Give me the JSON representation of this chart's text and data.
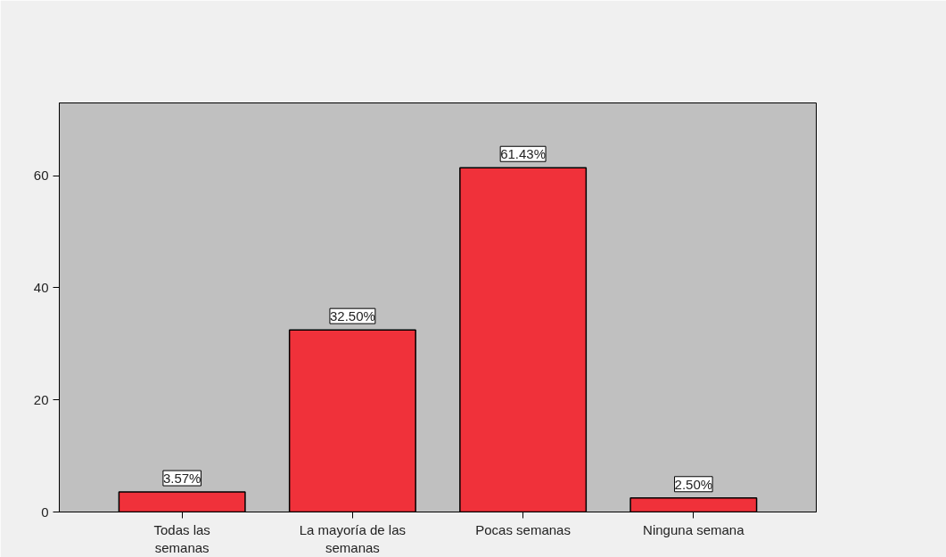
{
  "chart_data": {
    "type": "bar",
    "categories": [
      "Todas las semanas",
      "La mayoría de las semanas",
      "Pocas semanas",
      "Ninguna semana"
    ],
    "values": [
      3.57,
      32.5,
      61.43,
      2.5
    ],
    "value_labels": [
      "3.57%",
      "32.50%",
      "61.43%",
      "2.50%"
    ],
    "color": "#f0313a",
    "ylim": [
      0,
      73
    ],
    "yticks": [
      0,
      20,
      40,
      60
    ],
    "grid": false
  }
}
